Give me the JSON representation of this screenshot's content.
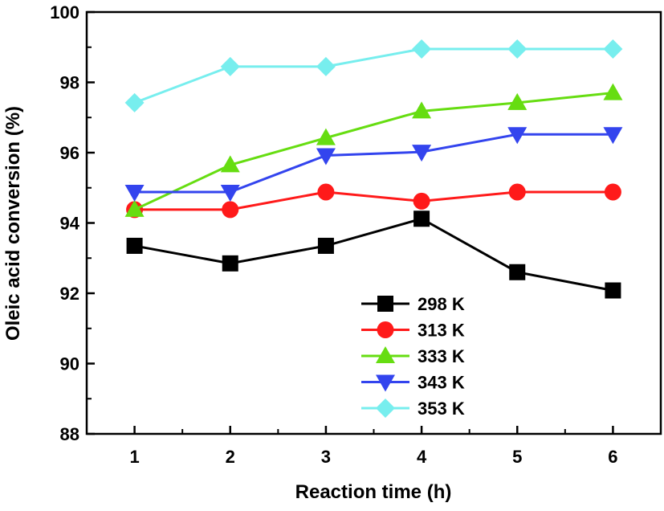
{
  "chart_data": {
    "type": "line",
    "xlabel": "Reaction time (h)",
    "ylabel": "Oleic acid conversion (%)",
    "x": [
      1,
      2,
      3,
      4,
      5,
      6
    ],
    "xlim": [
      0.5,
      6.5
    ],
    "ylim": [
      88,
      100
    ],
    "xticks": [
      1,
      2,
      3,
      4,
      5,
      6
    ],
    "yticks": [
      88,
      90,
      92,
      94,
      96,
      98,
      100
    ],
    "grid": false,
    "legend_position": "bottom-right",
    "series": [
      {
        "name": "298 K",
        "color": "#000000",
        "marker": "square",
        "values": [
          93.35,
          92.85,
          93.35,
          94.12,
          92.6,
          92.08
        ]
      },
      {
        "name": "313 K",
        "color": "#ff1a1a",
        "marker": "circle",
        "values": [
          94.38,
          94.38,
          94.88,
          94.62,
          94.88,
          94.88
        ]
      },
      {
        "name": "333 K",
        "color": "#66dd11",
        "marker": "triangle-up",
        "values": [
          94.38,
          95.65,
          96.42,
          97.18,
          97.42,
          97.7
        ]
      },
      {
        "name": "343 K",
        "color": "#3344ee",
        "marker": "triangle-down",
        "values": [
          94.88,
          94.88,
          95.92,
          96.02,
          96.52,
          96.52
        ]
      },
      {
        "name": "353 K",
        "color": "#77eeee",
        "marker": "diamond",
        "values": [
          97.42,
          98.45,
          98.45,
          98.95,
          98.95,
          98.95
        ]
      }
    ]
  }
}
